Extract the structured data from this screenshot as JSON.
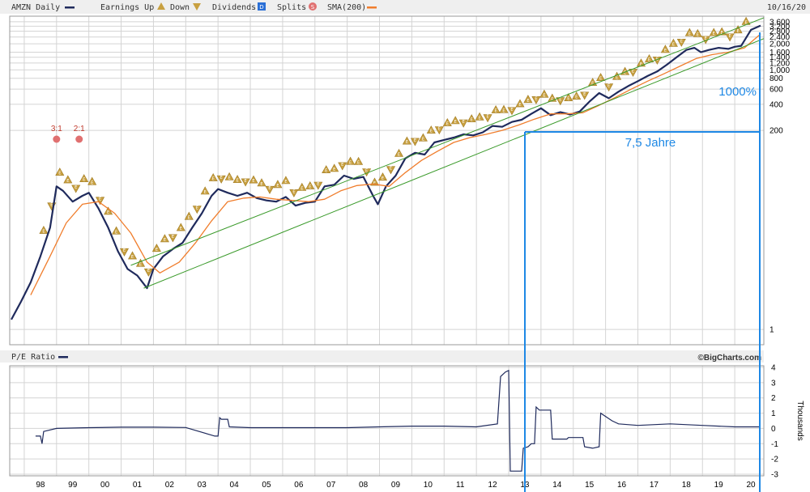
{
  "header": {
    "symbol_label": "AMZN Daily",
    "earnings_up_label": "Earnings Up",
    "earnings_down_label": "Down",
    "dividends_label": "Dividends",
    "splits_label": "Splits",
    "sma_label": "SMA(200)",
    "date_label": "10/16/20"
  },
  "pe_panel": {
    "title": "P/E Ratio",
    "watermark": "©BigCharts.com",
    "axis_label": "Thousands"
  },
  "annotations": {
    "jahre_label": "7,5 Jahre",
    "percent_label": "1000%"
  },
  "splits": [
    {
      "label": "3:1",
      "year": 1999.0
    },
    {
      "label": "2:1",
      "year": 1999.7
    }
  ],
  "colors": {
    "price": "#1f2a5c",
    "sma": "#f07d2c",
    "channel": "#3a9a2a",
    "annotation": "#1e88e5",
    "earnings": "#c8a040",
    "split": "#e07070",
    "grid": "#d4d4d4"
  },
  "chart_data": [
    {
      "type": "line",
      "scale": "log",
      "xlim": [
        1997.55,
        2020.9
      ],
      "ylim": [
        0.68,
        4000
      ],
      "x_ticks": [
        "98",
        "99",
        "00",
        "01",
        "02",
        "03",
        "04",
        "05",
        "06",
        "07",
        "08",
        "09",
        "10",
        "11",
        "12",
        "13",
        "14",
        "15",
        "16",
        "17",
        "18",
        "19",
        "20"
      ],
      "y_ticks": [
        "3,600",
        "3,200",
        "2,800",
        "2,400",
        "2,000",
        "1,600",
        "1,400",
        "1,200",
        "1,000",
        "800",
        "600",
        "400",
        "200",
        "1"
      ],
      "y_tick_values": [
        3600,
        3200,
        2800,
        2400,
        2000,
        1600,
        1400,
        1200,
        1000,
        800,
        600,
        400,
        200,
        1
      ],
      "series": [
        {
          "x": [
            1997.6,
            1997.9,
            1998.2,
            1998.5,
            1998.8,
            1999.0,
            1999.2,
            1999.5,
            1999.8,
            2000.0,
            2000.3,
            2000.6,
            2000.9,
            2001.2,
            2001.5,
            2001.8,
            2002.0,
            2002.3,
            2002.6,
            2002.9,
            2003.2,
            2003.5,
            2003.8,
            2004.0,
            2004.3,
            2004.6,
            2004.9,
            2005.2,
            2005.5,
            2005.8,
            2006.1,
            2006.4,
            2006.7,
            2007.0,
            2007.3,
            2007.6,
            2007.9,
            2008.2,
            2008.5,
            2008.8,
            2008.95,
            2009.2,
            2009.5,
            2009.8,
            2010.1,
            2010.4,
            2010.7,
            2011.0,
            2011.3,
            2011.6,
            2011.9,
            2012.2,
            2012.5,
            2012.8,
            2013.1,
            2013.4,
            2013.7,
            2014.0,
            2014.3,
            2014.6,
            2014.9,
            2015.2,
            2015.5,
            2015.8,
            2016.1,
            2016.4,
            2016.7,
            2017.0,
            2017.3,
            2017.6,
            2017.9,
            2018.2,
            2018.5,
            2018.75,
            2018.95,
            2019.2,
            2019.5,
            2019.8,
            2020.0,
            2020.2,
            2020.5,
            2020.8
          ],
          "y": [
            1.3,
            2.1,
            3.5,
            7,
            15,
            45,
            40,
            30,
            35,
            38,
            25,
            15,
            8,
            5,
            4.2,
            3,
            5,
            7,
            8.5,
            10,
            15,
            22,
            35,
            42,
            38,
            35,
            38,
            33,
            31,
            30,
            34,
            27,
            29,
            30,
            45,
            47,
            60,
            55,
            58,
            35,
            28,
            45,
            60,
            95,
            110,
            105,
            145,
            155,
            165,
            180,
            175,
            190,
            225,
            220,
            250,
            265,
            310,
            360,
            300,
            325,
            305,
            330,
            430,
            540,
            470,
            560,
            650,
            740,
            850,
            960,
            1150,
            1400,
            1700,
            1800,
            1600,
            1700,
            1800,
            1750,
            1850,
            1900,
            2900,
            3250
          ]
        },
        {
          "name": "SMA(200)",
          "x": [
            1998.2,
            1998.8,
            1999.3,
            1999.8,
            2000.3,
            2000.8,
            2001.3,
            2001.8,
            2002.2,
            2002.8,
            2003.3,
            2003.8,
            2004.3,
            2004.8,
            2005.3,
            2005.8,
            2006.3,
            2006.8,
            2007.3,
            2007.8,
            2008.3,
            2008.8,
            2009.3,
            2009.8,
            2010.3,
            2010.8,
            2011.3,
            2011.8,
            2012.3,
            2012.8,
            2013.3,
            2013.8,
            2014.3,
            2014.8,
            2015.3,
            2015.8,
            2016.3,
            2016.8,
            2017.3,
            2017.8,
            2018.3,
            2018.8,
            2019.3,
            2019.8,
            2020.3,
            2020.8
          ],
          "y": [
            2.5,
            7,
            17,
            28,
            30,
            22,
            13,
            6,
            4.5,
            6,
            10,
            18,
            30,
            33,
            34,
            32,
            31,
            30,
            32,
            40,
            46,
            48,
            45,
            65,
            90,
            115,
            145,
            165,
            180,
            200,
            230,
            270,
            310,
            310,
            320,
            390,
            480,
            600,
            740,
            900,
            1100,
            1350,
            1500,
            1600,
            1800,
            2600
          ]
        },
        {
          "x": [
            2001.3,
            2020.9
          ],
          "y": [
            5.5,
            4000
          ]
        },
        {
          "x": [
            2001.7,
            2020.9
          ],
          "y": [
            3.0,
            2300
          ]
        }
      ]
    },
    {
      "type": "line",
      "ylim": [
        -3,
        4
      ],
      "y_ticks": [
        "4",
        "3",
        "2",
        "1",
        "0",
        "-1",
        "-2",
        "-3"
      ],
      "y_tick_values": [
        4,
        3,
        2,
        1,
        0,
        -1,
        -2,
        -3
      ],
      "series": [
        {
          "x": [
            1998.35,
            1998.5,
            1998.55,
            1998.6,
            1999.0,
            2000.0,
            2001.0,
            2002.0,
            2003.0,
            2003.9,
            2004.0,
            2004.05,
            2004.1,
            2004.3,
            2004.35,
            2005.0,
            2006.0,
            2007.0,
            2008.0,
            2009.0,
            2010.0,
            2011.0,
            2012.0,
            2012.65,
            2012.75,
            2012.8,
            2012.9,
            2013.0,
            2013.05,
            2013.1,
            2013.4,
            2013.45,
            2013.6,
            2013.7,
            2013.8,
            2013.85,
            2013.95,
            2014.3,
            2014.35,
            2014.8,
            2014.85,
            2015.0,
            2015.3,
            2015.35,
            2015.6,
            2015.8,
            2015.85,
            2016.2,
            2016.4,
            2017.0,
            2018.0,
            2019.0,
            2020.0,
            2020.8
          ],
          "y": [
            -0.5,
            -0.5,
            -1.0,
            -0.2,
            0.0,
            0.05,
            0.08,
            0.08,
            0.06,
            -0.5,
            -0.5,
            0.7,
            0.6,
            0.6,
            0.1,
            0.05,
            0.05,
            0.05,
            0.05,
            0.1,
            0.15,
            0.15,
            0.1,
            0.3,
            3.4,
            3.5,
            3.7,
            3.8,
            -2.8,
            -2.8,
            -2.8,
            -1.3,
            -1.2,
            -1.0,
            -1.0,
            1.4,
            1.2,
            1.2,
            -0.7,
            -0.7,
            -0.6,
            -0.6,
            -0.6,
            -1.2,
            -1.3,
            -1.2,
            1.0,
            0.5,
            0.3,
            0.2,
            0.3,
            0.2,
            0.1,
            0.1
          ]
        }
      ]
    }
  ]
}
